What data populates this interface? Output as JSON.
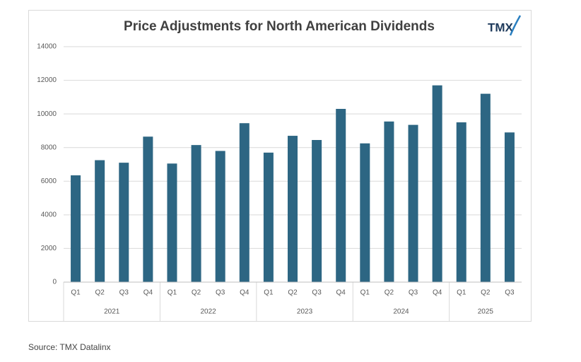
{
  "chart_data": {
    "type": "bar",
    "title": "Price Adjustments for North American Dividends",
    "logo": "TMX",
    "color": "#2d6683",
    "grid": true,
    "ylim": [
      0,
      14000
    ],
    "yticks": [
      0,
      2000,
      4000,
      6000,
      8000,
      10000,
      12000,
      14000
    ],
    "groups": [
      {
        "label": "2021",
        "categories": [
          "Q1",
          "Q2",
          "Q3",
          "Q4"
        ],
        "values": [
          6350,
          7250,
          7100,
          8650
        ]
      },
      {
        "label": "2022",
        "categories": [
          "Q1",
          "Q2",
          "Q3",
          "Q4"
        ],
        "values": [
          7050,
          8150,
          7800,
          9450
        ]
      },
      {
        "label": "2023",
        "categories": [
          "Q1",
          "Q2",
          "Q3",
          "Q4"
        ],
        "values": [
          7700,
          8700,
          8450,
          10300
        ]
      },
      {
        "label": "2024",
        "categories": [
          "Q1",
          "Q2",
          "Q3",
          "Q4"
        ],
        "values": [
          8250,
          9550,
          9350,
          11700
        ]
      },
      {
        "label": "2025",
        "categories": [
          "Q1",
          "Q2",
          "Q3"
        ],
        "values": [
          9500,
          11200,
          8900
        ]
      }
    ]
  },
  "source": "Source: TMX Datalinx"
}
